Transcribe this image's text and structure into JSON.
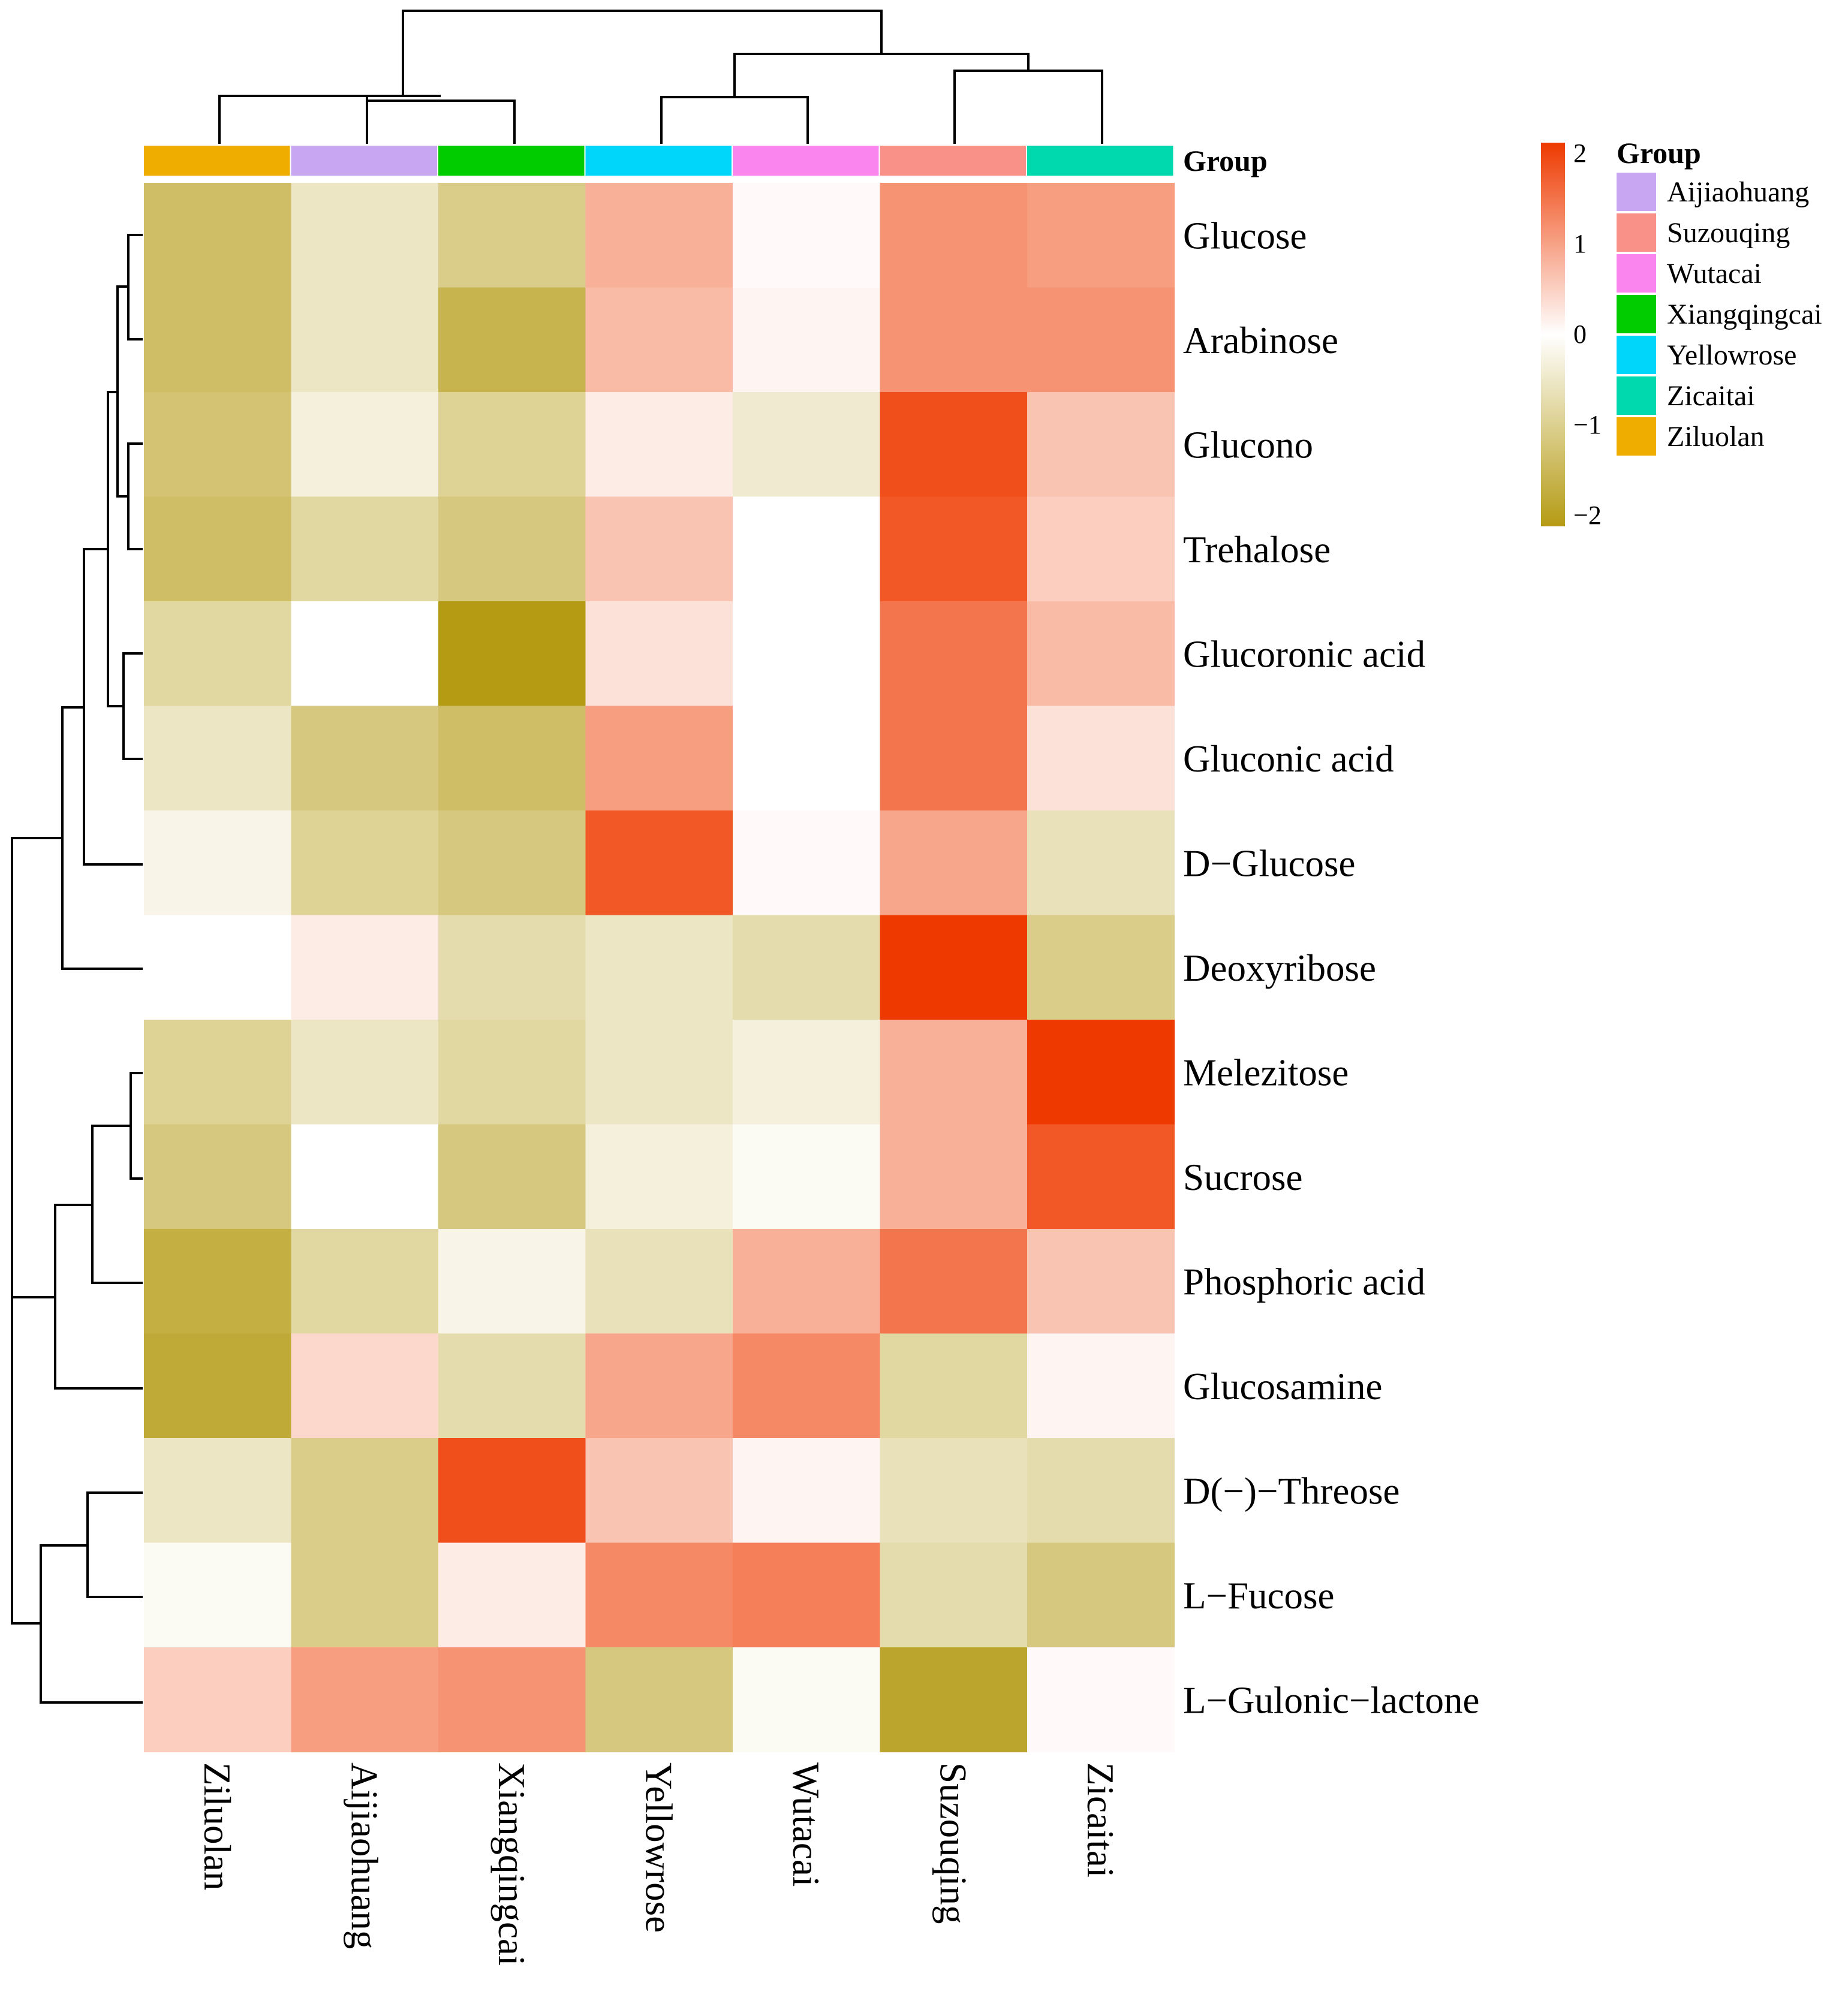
{
  "chart_data": {
    "type": "heatmap",
    "title": "",
    "columns": [
      "Ziluolan",
      "Aijiaohuang",
      "Xiangqingcai",
      "Yellowrose",
      "Wutacai",
      "Suzouqing",
      "Zicaitai"
    ],
    "rows": [
      "Glucose",
      "Arabinose",
      "Glucono",
      "Trehalose",
      "Glucoronic acid",
      "Gluconic acid",
      "D−Glucose",
      "Deoxyribose",
      "Melezitose",
      "Sucrose",
      "Phosphoric acid",
      "Glucosamine",
      "D(−)−Threose",
      "L−Fucose",
      "L−Gulonic−lactone"
    ],
    "values": [
      [
        -1.3,
        -0.5,
        -1.0,
        0.8,
        0.05,
        1.1,
        1.0
      ],
      [
        -1.3,
        -0.5,
        -1.5,
        0.7,
        0.1,
        1.1,
        1.1
      ],
      [
        -1.2,
        -0.3,
        -0.9,
        0.2,
        -0.4,
        1.8,
        0.6
      ],
      [
        -1.3,
        -0.8,
        -1.1,
        0.6,
        0.0,
        1.7,
        0.5
      ],
      [
        -0.8,
        0.0,
        -2.0,
        0.3,
        0.0,
        1.4,
        0.7
      ],
      [
        -0.5,
        -1.1,
        -1.3,
        1.0,
        0.0,
        1.4,
        0.3
      ],
      [
        -0.2,
        -0.9,
        -1.1,
        1.7,
        0.05,
        0.9,
        -0.6
      ],
      [
        0.0,
        0.2,
        -0.7,
        -0.5,
        -0.7,
        2.1,
        -1.0
      ],
      [
        -0.9,
        -0.5,
        -0.8,
        -0.5,
        -0.3,
        0.8,
        2.0
      ],
      [
        -1.1,
        0.0,
        -1.1,
        -0.3,
        -0.1,
        0.8,
        1.7
      ],
      [
        -1.6,
        -0.8,
        -0.2,
        -0.6,
        0.8,
        1.4,
        0.6
      ],
      [
        -1.7,
        0.4,
        -0.7,
        0.9,
        1.2,
        -0.8,
        0.1
      ],
      [
        -0.5,
        -1.0,
        1.8,
        0.6,
        0.1,
        -0.6,
        -0.7
      ],
      [
        -0.1,
        -1.0,
        0.2,
        1.2,
        1.3,
        -0.7,
        -1.1
      ],
      [
        0.5,
        1.0,
        1.1,
        -1.1,
        -0.1,
        -1.8,
        0.05
      ]
    ],
    "scale": {
      "min": -2,
      "max": 2,
      "ticks": [
        "2",
        "1",
        "0",
        "−1",
        "−2"
      ],
      "colors": [
        "#b59b14",
        "#ffffff",
        "#ee3a00"
      ]
    },
    "annotation_title": "Group",
    "groups": [
      {
        "name": "Aijiaohuang",
        "color": "#c9a6f2"
      },
      {
        "name": "Suzouqing",
        "color": "#fa9189"
      },
      {
        "name": "Wutacai",
        "color": "#fb85ee"
      },
      {
        "name": "Xiangqingcai",
        "color": "#00cc00"
      },
      {
        "name": "Yellowrose",
        "color": "#00d5fa"
      },
      {
        "name": "Zicaitai",
        "color": "#00d8ad"
      },
      {
        "name": "Ziluolan",
        "color": "#efad00"
      }
    ],
    "column_group_colors": [
      "#efad00",
      "#c9a6f2",
      "#00cc00",
      "#00d5fa",
      "#fb85ee",
      "#fa9189",
      "#00d8ad"
    ],
    "column_dendrogram": "((Ziluolan,(Aijiaohuang,Xiangqingcai)),((Yellowrose,Wutacai),(Suzouqing,Zicaitai)))",
    "row_dendrogram": "(((((Glucose,Arabinose),(Glucono,Trehalose)),(Glucoronic acid,Gluconic acid)),D-Glucose),Deoxyribose),(((Melezitose,Sucrose),Phosphoric acid),Glucosamine),((D(-)-Threose,L-Fucose),L-Gulonic-lactone)"
  }
}
